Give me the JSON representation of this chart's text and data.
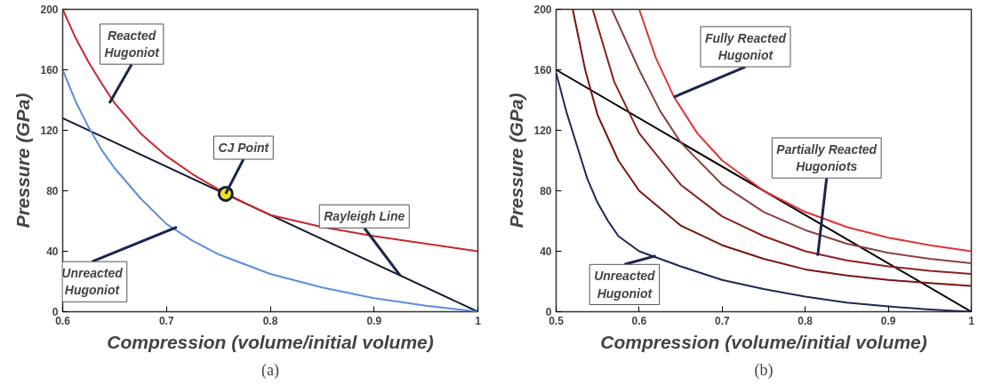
{
  "chart_data": [
    {
      "type": "line",
      "xlabel": "Compression (volume/initial volume)",
      "ylabel": "Pressure (GPa)",
      "xlim": [
        0.6,
        1
      ],
      "ylim": [
        0,
        200
      ],
      "xticks": [
        0.6,
        0.7,
        0.8,
        0.9,
        1
      ],
      "yticks": [
        0,
        40,
        80,
        120,
        160,
        200
      ],
      "grid": false,
      "series": [
        {
          "color": "#141c36",
          "x": [
            0.6,
            1
          ],
          "values": [
            128,
            0
          ]
        },
        {
          "color": "#c8282d",
          "x": [
            0.6,
            0.6125,
            0.625,
            0.6375,
            0.65,
            0.675,
            0.7,
            0.725,
            0.75,
            0.775,
            0.8,
            0.85,
            0.9,
            0.95,
            1
          ],
          "values": [
            200,
            181,
            165,
            151,
            138,
            118,
            103,
            91,
            81,
            72,
            64,
            56,
            50,
            45,
            40
          ]
        },
        {
          "color": "#5a8fdc",
          "x": [
            0.6,
            0.6125,
            0.625,
            0.6375,
            0.65,
            0.675,
            0.7,
            0.725,
            0.75,
            0.8,
            0.85,
            0.9,
            0.95,
            1
          ],
          "values": [
            160,
            139,
            122,
            107,
            95,
            75,
            58,
            47,
            38,
            25,
            16,
            9,
            4,
            0
          ]
        },
        {
          "type": "scatter",
          "color": "#f5e31a",
          "marker": "circle",
          "x": [
            0.757
          ],
          "values": [
            78
          ]
        }
      ],
      "annotations": [
        {
          "text": "Reacted\nHugoniot",
          "x": 0.645,
          "y": 138
        },
        {
          "text": "CJ Point",
          "x": 0.757,
          "y": 78
        },
        {
          "text": "Rayleigh Line",
          "x": 0.925,
          "y": 24
        },
        {
          "text": "Unreacted\nHugoniot",
          "x": 0.71,
          "y": 56
        },
        "(a)"
      ]
    },
    {
      "type": "line",
      "xlabel": "Compression (volume/initial volume)",
      "ylabel": "Pressure (GPa)",
      "xlim": [
        0.5,
        1
      ],
      "ylim": [
        0,
        200
      ],
      "xticks": [
        0.5,
        0.6,
        0.7,
        0.8,
        0.9,
        1
      ],
      "yticks": [
        0,
        40,
        80,
        120,
        160,
        200
      ],
      "grid": false,
      "series": [
        {
          "color": "#000000",
          "x": [
            0.5,
            1
          ],
          "values": [
            160,
            0
          ]
        },
        {
          "color": "#1c2a52",
          "x": [
            0.5,
            0.5125,
            0.525,
            0.5375,
            0.55,
            0.5625,
            0.575,
            0.6,
            0.65,
            0.7,
            0.75,
            0.8,
            0.85,
            0.9,
            0.95,
            1
          ],
          "values": [
            158,
            132,
            110,
            88,
            72,
            60,
            50,
            40,
            30,
            21,
            15,
            10,
            6,
            3.5,
            1.5,
            0
          ]
        },
        {
          "color": "#7a1414",
          "x": [
            0.52,
            0.535,
            0.55,
            0.575,
            0.6,
            0.65,
            0.7,
            0.75,
            0.8,
            0.85,
            0.9,
            0.95,
            1
          ],
          "values": [
            200,
            160,
            130,
            100,
            80,
            57,
            44,
            35,
            28,
            24,
            21,
            19,
            17
          ]
        },
        {
          "color": "#8c2020",
          "x": [
            0.544,
            0.57,
            0.6,
            0.65,
            0.7,
            0.75,
            0.8,
            0.85,
            0.9,
            0.95,
            1
          ],
          "values": [
            200,
            152,
            118,
            84,
            63,
            50,
            40,
            34,
            30,
            27,
            25
          ]
        },
        {
          "color": "#8e4040",
          "x": [
            0.567,
            0.6,
            0.625,
            0.65,
            0.7,
            0.75,
            0.8,
            0.85,
            0.9,
            0.95,
            1
          ],
          "values": [
            200,
            160,
            133,
            112,
            84,
            66,
            54,
            45,
            39,
            35,
            32
          ]
        },
        {
          "color": "#e03434",
          "x": [
            0.6,
            0.62,
            0.642,
            0.67,
            0.7,
            0.75,
            0.8,
            0.85,
            0.9,
            0.95,
            1
          ],
          "values": [
            200,
            168,
            142,
            118,
            100,
            80,
            66,
            56,
            49,
            44,
            40
          ]
        }
      ],
      "annotations": [
        {
          "text": "Fully Reacted\nHugoniot",
          "x": 0.642,
          "y": 142
        },
        {
          "text": "Partially Reacted\nHugoniots",
          "x": 0.815,
          "y": 37
        },
        {
          "text": "Unreacted\nHugoniot",
          "x": 0.62,
          "y": 37
        },
        "(b)"
      ]
    }
  ]
}
